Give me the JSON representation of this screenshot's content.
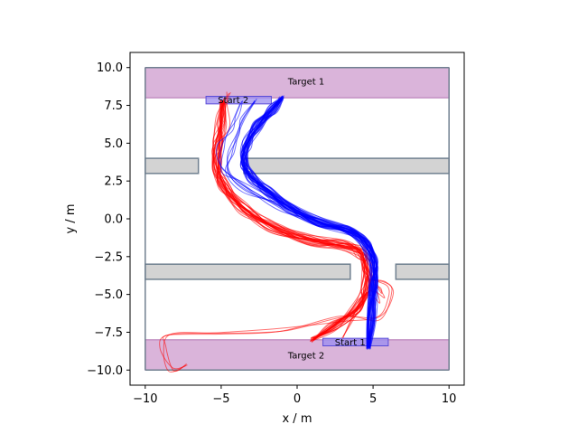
{
  "chart_data": {
    "type": "line",
    "xlabel": "x / m",
    "ylabel": "y / m",
    "xlim": [
      -11,
      11
    ],
    "ylim": [
      -11,
      11
    ],
    "x_ticks": [
      -10,
      -5,
      0,
      5,
      10
    ],
    "y_ticks": [
      -10.0,
      -7.5,
      -5.0,
      -2.5,
      0.0,
      2.5,
      5.0,
      7.5,
      10.0
    ],
    "x_tick_labels": [
      "−10",
      "−5",
      "0",
      "5",
      "10"
    ],
    "y_tick_labels": [
      "−10.0",
      "−7.5",
      "−5.0",
      "−2.5",
      "0.0",
      "2.5",
      "5.0",
      "7.5",
      "10.0"
    ],
    "grid": false,
    "colors": {
      "target_fill": "#d8b0d8",
      "target_edge": "#b070b0",
      "start_fill": "#9a8cf0",
      "start_edge": "#5a4cd8",
      "obstacle_fill": "#d3d3d3",
      "obstacle_edge": "#708090",
      "series_red": "#ff0000",
      "series_blue": "#0000ff"
    },
    "regions": [
      {
        "kind": "target",
        "label": "Target 1",
        "x": [
          -10,
          10
        ],
        "y": [
          8,
          10
        ]
      },
      {
        "kind": "target",
        "label": "Target 2",
        "x": [
          -10,
          10
        ],
        "y": [
          -10,
          -8
        ]
      },
      {
        "kind": "start",
        "label": "Start 2",
        "x": [
          -6,
          -1.7
        ],
        "y": [
          7.6,
          8.1
        ]
      },
      {
        "kind": "start",
        "label": "Start 1",
        "x": [
          1.7,
          6
        ],
        "y": [
          -8.4,
          -7.9
        ]
      }
    ],
    "obstacles": [
      {
        "x": [
          -10,
          -6.5
        ],
        "y": [
          3,
          4
        ]
      },
      {
        "x": [
          -3.5,
          10
        ],
        "y": [
          3,
          4
        ]
      },
      {
        "x": [
          -10,
          3.5
        ],
        "y": [
          -4,
          -3
        ]
      },
      {
        "x": [
          6.5,
          10
        ],
        "y": [
          -4,
          -3
        ]
      }
    ],
    "walls": {
      "x": [
        -10,
        10
      ],
      "y": [
        -10,
        10
      ]
    },
    "series": [
      {
        "color": "red",
        "base": [
          [
            1.0,
            -8.0
          ],
          [
            2.5,
            -7.0
          ],
          [
            4.0,
            -5.8
          ],
          [
            4.5,
            -4.5
          ],
          [
            4.6,
            -3.3
          ],
          [
            4.2,
            -2.3
          ],
          [
            3.0,
            -1.7
          ],
          [
            0.8,
            -1.4
          ],
          [
            -1.5,
            -0.6
          ],
          [
            -3.5,
            0.7
          ],
          [
            -4.8,
            2.2
          ],
          [
            -5.3,
            3.5
          ],
          [
            -5.2,
            5.0
          ],
          [
            -5.0,
            6.5
          ],
          [
            -4.9,
            7.8
          ]
        ],
        "count": 30,
        "spread": 0.35,
        "variants": [
          [
            [
              1.0,
              -8.0
            ],
            [
              2.5,
              -7.0
            ],
            [
              4.0,
              -5.8
            ],
            [
              4.5,
              -4.5
            ],
            [
              4.6,
              -3.3
            ],
            [
              4.2,
              -2.3
            ],
            [
              3.0,
              -1.7
            ],
            [
              0.8,
              -1.4
            ],
            [
              -1.5,
              -0.6
            ],
            [
              -3.5,
              0.7
            ],
            [
              -4.8,
              2.2
            ],
            [
              -5.3,
              3.5
            ],
            [
              -5.2,
              5.0
            ],
            [
              -5.0,
              6.5
            ],
            [
              -4.9,
              7.8
            ]
          ],
          [
            [
              3.0,
              -7.9
            ],
            [
              3.6,
              -6.5
            ],
            [
              4.5,
              -5.0
            ],
            [
              5.2,
              -4.8
            ],
            [
              5.8,
              -5.2
            ],
            [
              4.8,
              -3.5
            ],
            [
              4.0,
              -2.0
            ],
            [
              2.5,
              -1.5
            ],
            [
              0.5,
              -1.2
            ],
            [
              -2.0,
              -0.3
            ],
            [
              -4.0,
              1.2
            ],
            [
              -5.0,
              2.6
            ],
            [
              -5.4,
              4.2
            ],
            [
              -4.8,
              6.0
            ],
            [
              -4.8,
              7.6
            ],
            [
              -4.5,
              8.3
            ]
          ],
          [
            [
              4.8,
              -4.0
            ],
            [
              5.8,
              -4.1
            ],
            [
              6.3,
              -4.9
            ],
            [
              5.5,
              -6.5
            ],
            [
              3.0,
              -6.8
            ],
            [
              -1.0,
              -7.2
            ],
            [
              -5.0,
              -7.5
            ],
            [
              -8.5,
              -7.7
            ],
            [
              -9.0,
              -8.5
            ],
            [
              -8.2,
              -9.8
            ],
            [
              -7.2,
              -9.7
            ]
          ]
        ]
      },
      {
        "color": "blue",
        "base": [
          [
            4.7,
            -8.5
          ],
          [
            4.9,
            -6.5
          ],
          [
            5.0,
            -4.5
          ],
          [
            5.1,
            -3.0
          ],
          [
            4.6,
            -1.7
          ],
          [
            3.5,
            -0.8
          ],
          [
            1.5,
            -0.2
          ],
          [
            -0.5,
            0.7
          ],
          [
            -2.0,
            1.8
          ],
          [
            -3.0,
            2.8
          ],
          [
            -3.5,
            3.8
          ],
          [
            -3.3,
            5.0
          ],
          [
            -2.6,
            6.2
          ],
          [
            -1.7,
            7.2
          ],
          [
            -1.0,
            8.0
          ]
        ],
        "count": 40,
        "spread": 0.3,
        "variants": [
          [
            [
              4.7,
              -8.5
            ],
            [
              4.9,
              -6.5
            ],
            [
              5.0,
              -4.5
            ],
            [
              5.1,
              -3.0
            ],
            [
              4.6,
              -1.7
            ],
            [
              3.5,
              -0.8
            ],
            [
              1.5,
              -0.2
            ],
            [
              -0.5,
              0.7
            ],
            [
              -2.0,
              1.8
            ],
            [
              -3.0,
              2.8
            ],
            [
              -3.5,
              3.8
            ],
            [
              -3.3,
              5.0
            ],
            [
              -2.6,
              6.2
            ],
            [
              -1.7,
              7.2
            ],
            [
              -1.0,
              8.0
            ]
          ],
          [
            [
              4.7,
              -8.5
            ],
            [
              4.8,
              -6.0
            ],
            [
              5.0,
              -4.0
            ],
            [
              4.9,
              -2.5
            ],
            [
              3.8,
              -1.0
            ],
            [
              1.8,
              -0.3
            ],
            [
              -0.5,
              0.6
            ],
            [
              -2.5,
              1.6
            ],
            [
              -4.0,
              2.6
            ],
            [
              -5.0,
              3.4
            ],
            [
              -5.0,
              4.6
            ],
            [
              -4.5,
              5.8
            ],
            [
              -4.0,
              7.0
            ],
            [
              -3.7,
              7.7
            ]
          ],
          [
            [
              4.7,
              -8.5
            ],
            [
              4.9,
              -6.0
            ],
            [
              5.0,
              -4.0
            ],
            [
              4.9,
              -2.5
            ],
            [
              3.8,
              -1.0
            ],
            [
              1.5,
              -0.3
            ],
            [
              -1.0,
              0.8
            ],
            [
              -3.5,
              2.0
            ],
            [
              -4.6,
              3.0
            ],
            [
              -4.3,
              4.2
            ],
            [
              -4.0,
              5.5
            ],
            [
              -3.5,
              6.8
            ],
            [
              -2.8,
              7.8
            ]
          ]
        ]
      }
    ]
  }
}
